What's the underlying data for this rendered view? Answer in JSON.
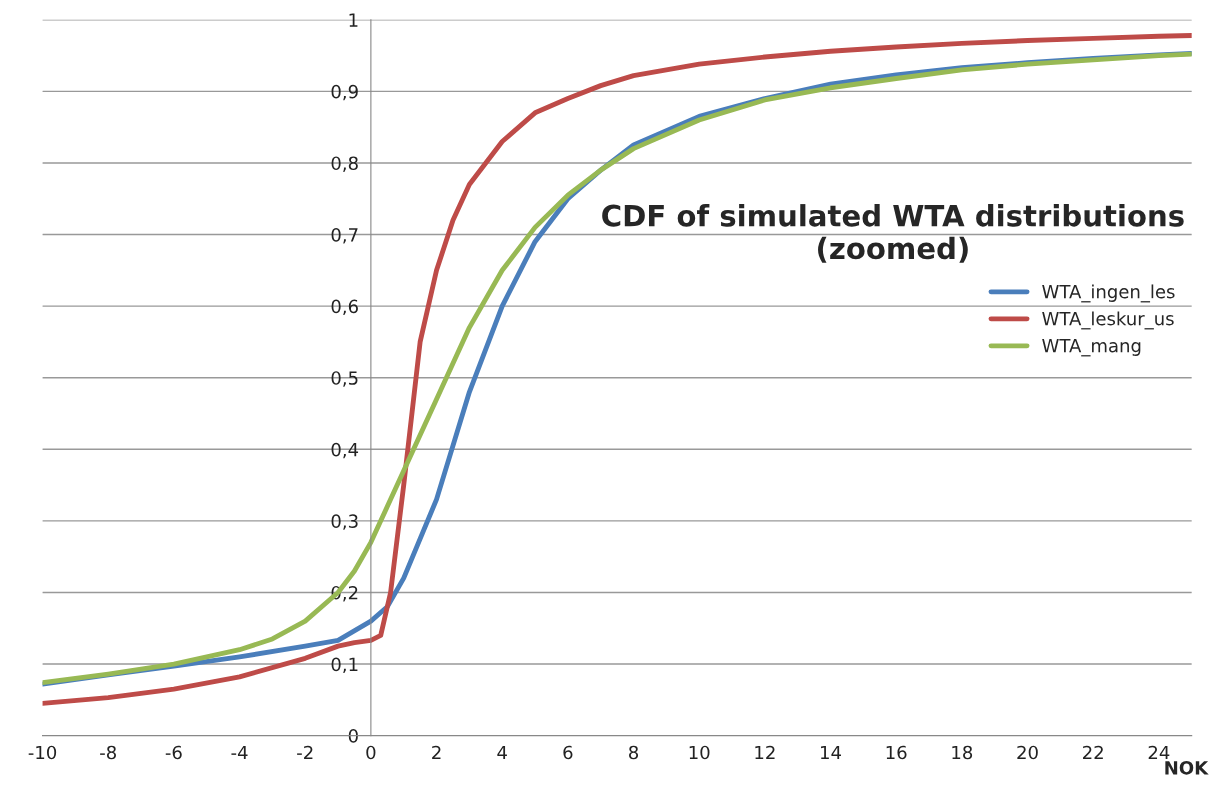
{
  "chart_data": {
    "type": "line",
    "title": "CDF of simulated WTA distributions\n(zoomed)",
    "xlabel": "NOK",
    "xlim": [
      -10,
      25
    ],
    "xticks": [
      -10,
      -8,
      -6,
      -4,
      -2,
      0,
      2,
      4,
      6,
      8,
      10,
      12,
      14,
      16,
      18,
      20,
      22,
      24
    ],
    "ylim": [
      0,
      1
    ],
    "yticks": [
      {
        "value": 0,
        "label": "0"
      },
      {
        "value": 0.1,
        "label": "0,1"
      },
      {
        "value": 0.2,
        "label": "0,2"
      },
      {
        "value": 0.3,
        "label": "0,3"
      },
      {
        "value": 0.4,
        "label": "0,4"
      },
      {
        "value": 0.5,
        "label": "0,5"
      },
      {
        "value": 0.6,
        "label": "0,6"
      },
      {
        "value": 0.7,
        "label": "0,7"
      },
      {
        "value": 0.8,
        "label": "0,8"
      },
      {
        "value": 0.9,
        "label": "0,9"
      },
      {
        "value": 1,
        "label": "1"
      }
    ],
    "grid": "y",
    "legend": "right",
    "marker": "none",
    "line_style": "solid",
    "series": [
      {
        "name": "WTA_ingen_les",
        "color": "#4a7ebb",
        "x": [
          -10,
          -8,
          -6,
          -4,
          -2,
          -1,
          0,
          0.5,
          1,
          2,
          3,
          4,
          5,
          6,
          7,
          8,
          10,
          12,
          14,
          16,
          18,
          20,
          22,
          24,
          25
        ],
        "values": [
          0.072,
          0.085,
          0.097,
          0.11,
          0.125,
          0.133,
          0.16,
          0.18,
          0.22,
          0.33,
          0.48,
          0.6,
          0.69,
          0.75,
          0.79,
          0.825,
          0.865,
          0.89,
          0.91,
          0.923,
          0.933,
          0.94,
          0.946,
          0.951,
          0.953
        ]
      },
      {
        "name": "WTA_leskur_us",
        "color": "#be4b48",
        "x": [
          -10,
          -8,
          -6,
          -4,
          -2,
          -1,
          -0.5,
          0,
          0.3,
          0.6,
          1,
          1.5,
          2,
          2.5,
          3,
          4,
          5,
          6,
          7,
          8,
          10,
          12,
          14,
          16,
          18,
          20,
          22,
          24,
          25
        ],
        "values": [
          0.045,
          0.053,
          0.065,
          0.082,
          0.108,
          0.125,
          0.13,
          0.133,
          0.14,
          0.2,
          0.35,
          0.55,
          0.65,
          0.72,
          0.77,
          0.83,
          0.87,
          0.89,
          0.908,
          0.922,
          0.938,
          0.948,
          0.956,
          0.962,
          0.967,
          0.971,
          0.974,
          0.977,
          0.978
        ]
      },
      {
        "name": "WTA_mang",
        "color": "#98b954",
        "x": [
          -10,
          -8,
          -6,
          -4,
          -3,
          -2,
          -1,
          -0.5,
          0,
          0.5,
          1,
          2,
          3,
          4,
          5,
          6,
          7,
          8,
          10,
          12,
          14,
          16,
          18,
          20,
          22,
          24,
          25
        ],
        "values": [
          0.074,
          0.086,
          0.1,
          0.12,
          0.135,
          0.16,
          0.2,
          0.23,
          0.27,
          0.32,
          0.37,
          0.47,
          0.57,
          0.65,
          0.71,
          0.755,
          0.79,
          0.82,
          0.86,
          0.888,
          0.905,
          0.918,
          0.93,
          0.938,
          0.944,
          0.95,
          0.952
        ]
      }
    ]
  }
}
